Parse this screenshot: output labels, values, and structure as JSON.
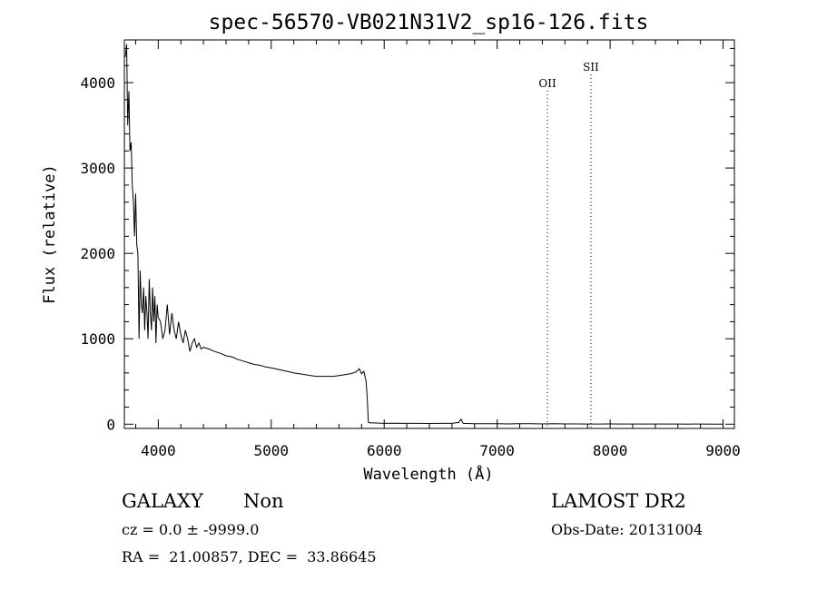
{
  "chart_data": {
    "type": "line",
    "title": "spec-56570-VB021N31V2_sp16-126.fits",
    "xlabel": "Wavelength (Å)",
    "ylabel": "Flux (relative)",
    "xlim": [
      3700,
      9100
    ],
    "ylim": [
      -50,
      4500
    ],
    "grid": false,
    "x_ticks": [
      4000,
      5000,
      6000,
      7000,
      8000,
      9000
    ],
    "x_tick_labels": [
      "4000",
      "5000",
      "6000",
      "7000",
      "8000",
      "9000"
    ],
    "y_ticks": [
      0,
      1000,
      2000,
      3000,
      4000
    ],
    "y_tick_labels": [
      "0",
      "1000",
      "2000",
      "3000",
      "4000"
    ],
    "line_marks": [
      {
        "label": "OII",
        "wavelength": 7445
      },
      {
        "label": "SII",
        "wavelength": 7830
      }
    ],
    "series": [
      {
        "x": [
          3710,
          3720,
          3730,
          3740,
          3750,
          3760,
          3770,
          3780,
          3790,
          3800,
          3810,
          3820,
          3830,
          3840,
          3850,
          3860,
          3870,
          3880,
          3890,
          3900,
          3910,
          3920,
          3930,
          3940,
          3950,
          3960,
          3970,
          3980,
          3990,
          4000,
          4020,
          4040,
          4060,
          4080,
          4100,
          4120,
          4140,
          4160,
          4180,
          4200,
          4220,
          4240,
          4260,
          4280,
          4300,
          4320,
          4340,
          4360,
          4380,
          4400,
          4450,
          4500,
          4550,
          4600,
          4650,
          4700,
          4750,
          4800,
          4850,
          4900,
          4950,
          5000,
          5050,
          5100,
          5150,
          5200,
          5250,
          5300,
          5350,
          5400,
          5450,
          5500,
          5550,
          5600,
          5650,
          5700,
          5750,
          5780,
          5800,
          5820,
          5840,
          5850,
          5860,
          5880,
          5900,
          6000,
          6100,
          6200,
          6300,
          6400,
          6500,
          6600,
          6660,
          6680,
          6700,
          6800,
          6900,
          7000,
          7100,
          7200,
          7300,
          7400,
          7500,
          7600,
          7700,
          7800,
          7900,
          8000,
          8100,
          8200,
          8300,
          8400,
          8500,
          8600,
          8700,
          8800,
          8900,
          9000
        ],
        "y": [
          4300,
          4450,
          3500,
          3900,
          3200,
          3300,
          2800,
          2600,
          2200,
          2700,
          2100,
          2000,
          1000,
          1800,
          1400,
          1300,
          1600,
          1100,
          1500,
          1300,
          1000,
          1700,
          1300,
          1100,
          1600,
          1200,
          1500,
          950,
          1400,
          1250,
          1200,
          1000,
          1100,
          1400,
          1050,
          1300,
          1100,
          1000,
          1200,
          1050,
          950,
          1100,
          1000,
          850,
          950,
          1000,
          900,
          950,
          880,
          900,
          880,
          850,
          830,
          800,
          790,
          760,
          740,
          720,
          700,
          690,
          670,
          660,
          645,
          630,
          615,
          600,
          590,
          580,
          570,
          560,
          560,
          560,
          560,
          570,
          580,
          590,
          610,
          650,
          590,
          620,
          500,
          300,
          20,
          15,
          15,
          10,
          12,
          10,
          10,
          8,
          10,
          10,
          20,
          60,
          10,
          5,
          5,
          5,
          3,
          5,
          5,
          3,
          5,
          3,
          3,
          2,
          2,
          3,
          2,
          2,
          2,
          2,
          2,
          2,
          1,
          2,
          1,
          1
        ]
      }
    ]
  },
  "info": {
    "object_class": "GALAXY",
    "subclass": "Non",
    "cz_line": "cz = 0.0 ± -9999.0",
    "radec_line": "RA =  21.00857, DEC =  33.86645",
    "survey": "LAMOST DR2",
    "obs_date": "Obs-Date: 20131004"
  }
}
